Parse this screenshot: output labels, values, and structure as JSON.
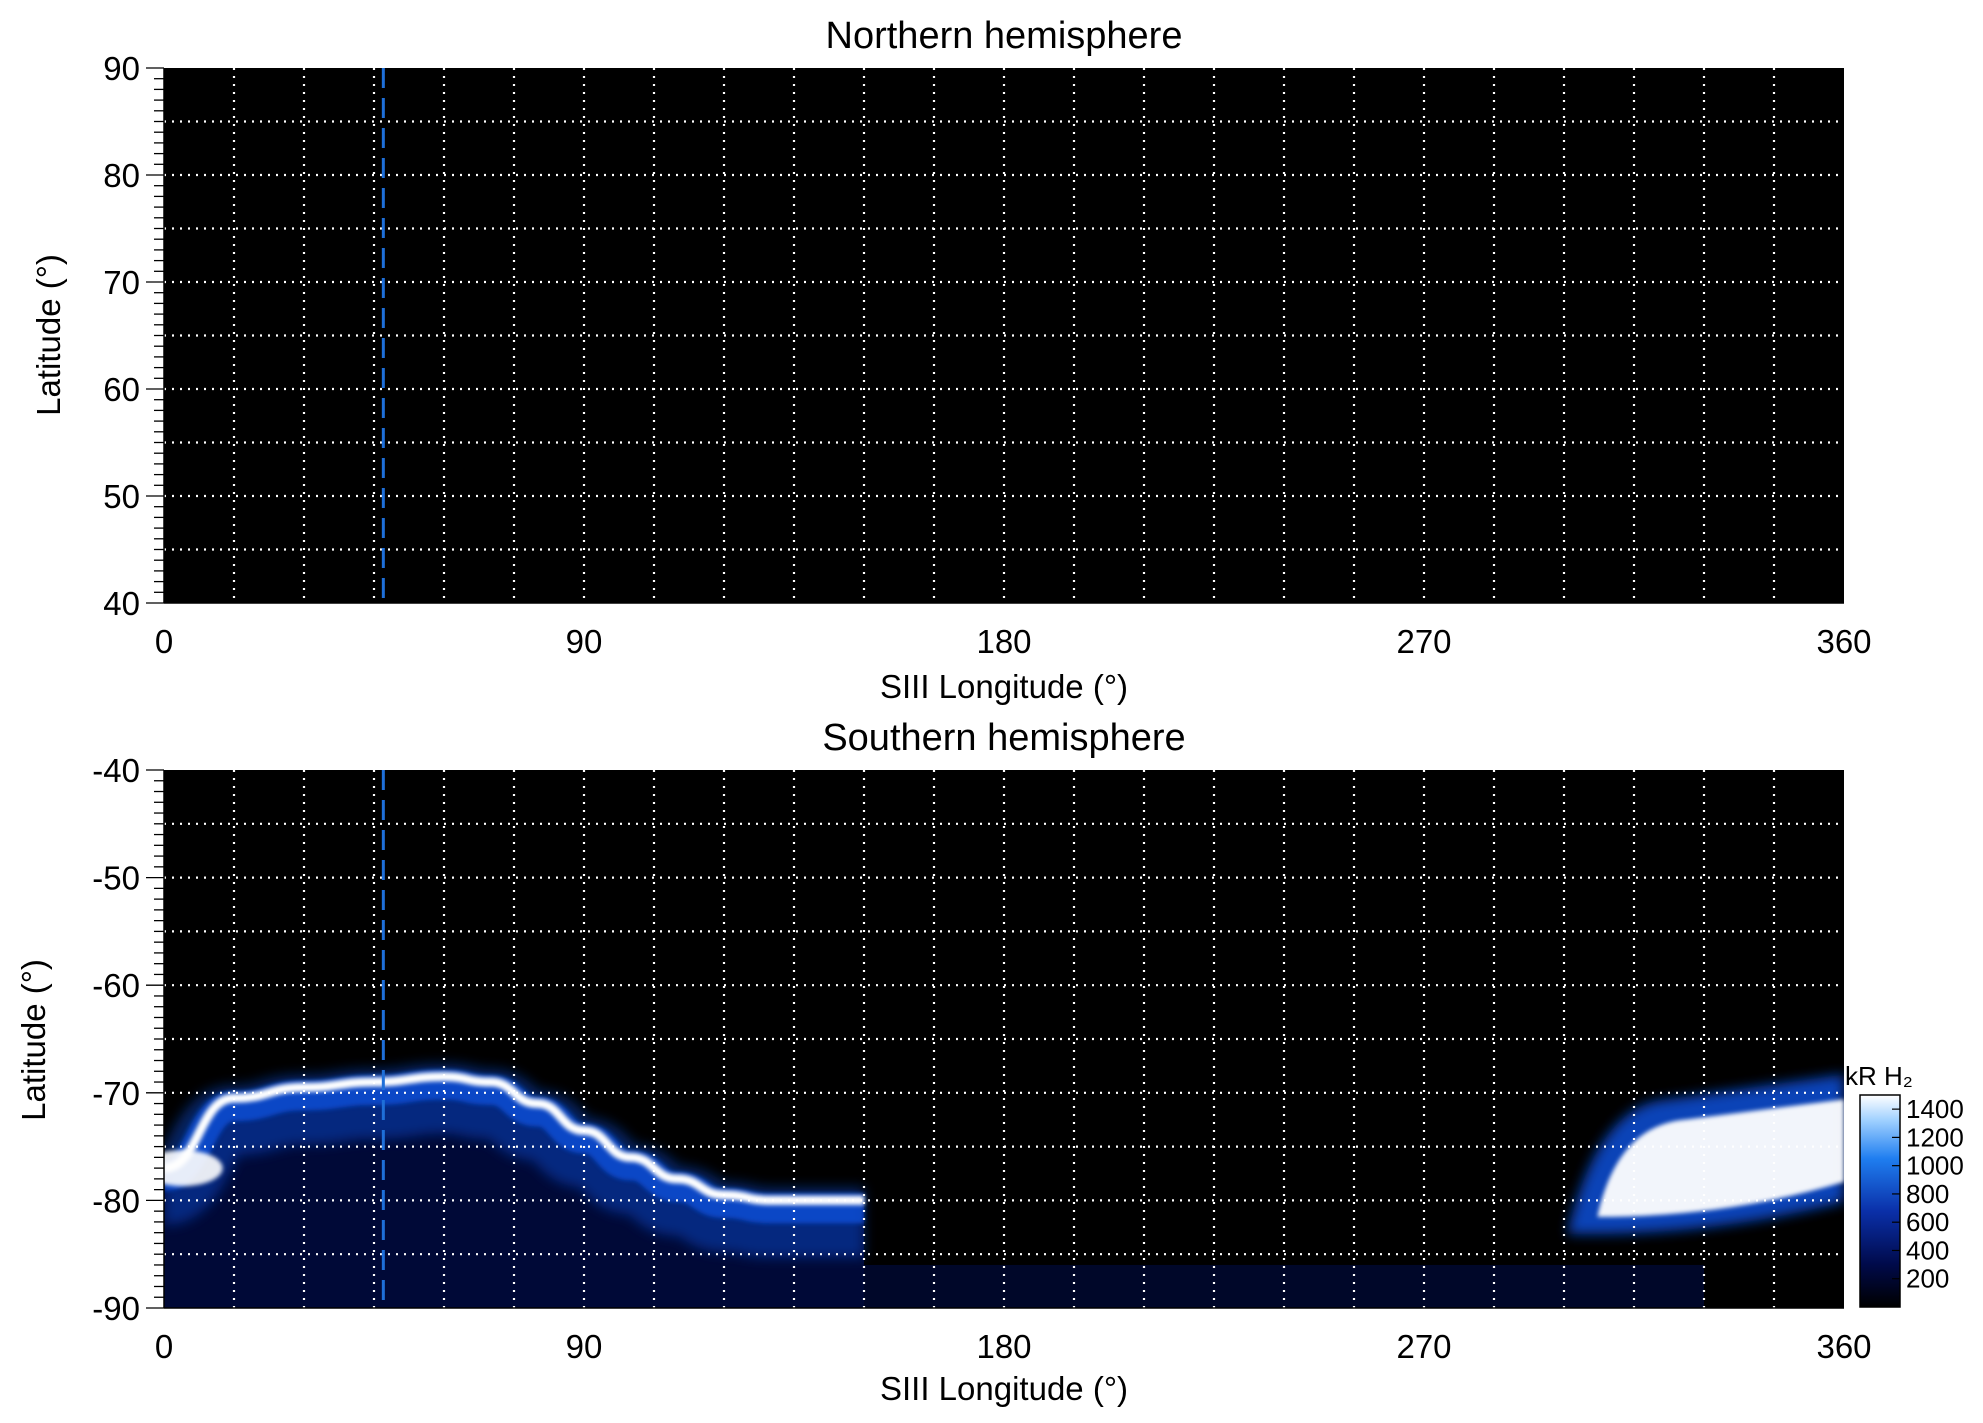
{
  "colors": {
    "background": "#000000",
    "grid": "#ffffff",
    "reference_line": "#1e6fd9",
    "aurora_low": "#000a3a",
    "aurora_mid": "#0a4fd8",
    "aurora_high": "#ffffff"
  },
  "chart_data": [
    {
      "type": "heatmap",
      "title": "Northern hemisphere",
      "xlabel": "SIII Longitude (°)",
      "ylabel": "Latitude (°)",
      "xlim": [
        0,
        360
      ],
      "ylim": [
        40,
        90
      ],
      "xticks": [
        0,
        90,
        180,
        270,
        360
      ],
      "yticks": [
        40,
        50,
        60,
        70,
        80,
        90
      ],
      "x_grid_step": 15,
      "y_grid_step": 5,
      "grid": true,
      "reference_longitude": 47,
      "emission": "none"
    },
    {
      "type": "heatmap",
      "title": "Southern hemisphere",
      "xlabel": "SIII Longitude (°)",
      "ylabel": "Latitude (°)",
      "xlim": [
        0,
        360
      ],
      "ylim": [
        -90,
        -40
      ],
      "xticks": [
        0,
        90,
        180,
        270,
        360
      ],
      "yticks": [
        -90,
        -80,
        -70,
        -60,
        -50,
        -40
      ],
      "x_grid_step": 15,
      "y_grid_step": 5,
      "grid": true,
      "reference_longitude": 47,
      "main_oval_center": {
        "lon": [
          0,
          15,
          30,
          45,
          60,
          70,
          80,
          90,
          100,
          110,
          120,
          130,
          140,
          150
        ],
        "lat": [
          -77,
          -70.5,
          -69.5,
          -69,
          -68.5,
          -69,
          -71,
          -73.5,
          -76,
          -78,
          -79.5,
          -80,
          -80,
          -80
        ]
      },
      "bright_patch": {
        "lon_range": [
          305,
          360
        ],
        "lat_range": [
          -82,
          -72
        ]
      },
      "colorbar": {
        "label": "kR H₂",
        "ticks": [
          200,
          400,
          600,
          800,
          1000,
          1200,
          1400
        ],
        "range": [
          0,
          1500
        ]
      }
    }
  ]
}
